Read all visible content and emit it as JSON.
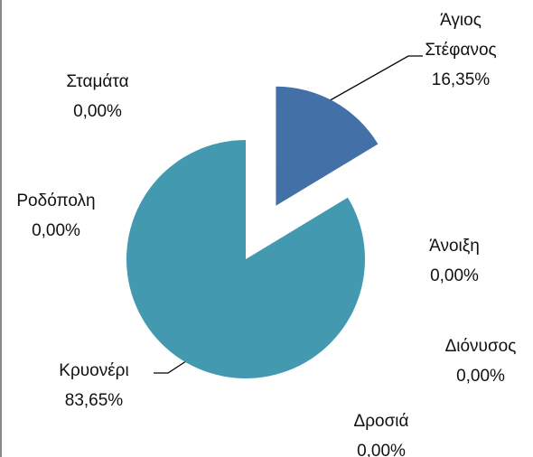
{
  "chart_data": {
    "type": "pie",
    "categories": [
      "Άγιος Στέφανος",
      "Άνοιξη",
      "Διόνυσος",
      "Δροσιά",
      "Κρυονέρι",
      "Ροδόπολη",
      "Σταμάτα"
    ],
    "values": [
      16.35,
      0,
      0,
      0,
      83.65,
      0,
      0
    ],
    "value_labels": [
      "16,35%",
      "0,00%",
      "0,00%",
      "0,00%",
      "83,65%",
      "0,00%",
      "0,00%"
    ],
    "colors": [
      "#4470a8",
      "#4a7fb8",
      "#3f8fb0",
      "#5aa0c0",
      "#4299b0",
      "#6aaac8",
      "#3a6a9a"
    ]
  }
}
